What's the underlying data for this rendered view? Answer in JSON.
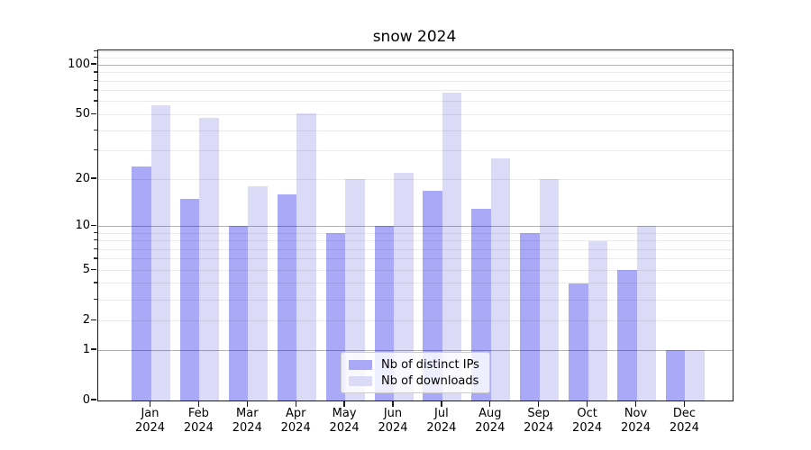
{
  "chart_data": {
    "type": "bar",
    "title": "snow 2024",
    "categories": [
      "Jan",
      "Feb",
      "Mar",
      "Apr",
      "May",
      "Jun",
      "Jul",
      "Aug",
      "Sep",
      "Oct",
      "Nov",
      "Dec"
    ],
    "category_year": "2024",
    "series": [
      {
        "name": "Nb of distinct IPs",
        "color": "#a9a9f7",
        "values": [
          24,
          15,
          10,
          16,
          9,
          10,
          17,
          13,
          9,
          4,
          5,
          1
        ]
      },
      {
        "name": "Nb of downloads",
        "color": "#dbdbf8",
        "values": [
          57,
          48,
          18,
          51,
          20,
          22,
          68,
          27,
          20,
          8,
          10,
          1
        ]
      }
    ],
    "xlabel": "",
    "ylabel": "",
    "yscale": "log1p",
    "ylim": [
      0,
      122
    ],
    "yticks_labeled": [
      0,
      1,
      2,
      5,
      10,
      20,
      50,
      100
    ],
    "yticks_major_grid": [
      1,
      10,
      100
    ],
    "yticks_minor_grid": [
      2,
      3,
      4,
      5,
      6,
      7,
      8,
      9,
      20,
      30,
      40,
      50,
      60,
      70,
      80,
      90,
      110,
      120
    ],
    "grid": true,
    "legend_position": "lower center"
  },
  "colors": {
    "background": "#ffffff",
    "spine": "#1a1a1a",
    "grid_major": "#b2b2b2",
    "grid_minor": "#e9e9e9",
    "bar_distinct_ips": "#a9a9f7",
    "bar_downloads": "#dbdbf8",
    "legend_border": "#cccccc"
  }
}
